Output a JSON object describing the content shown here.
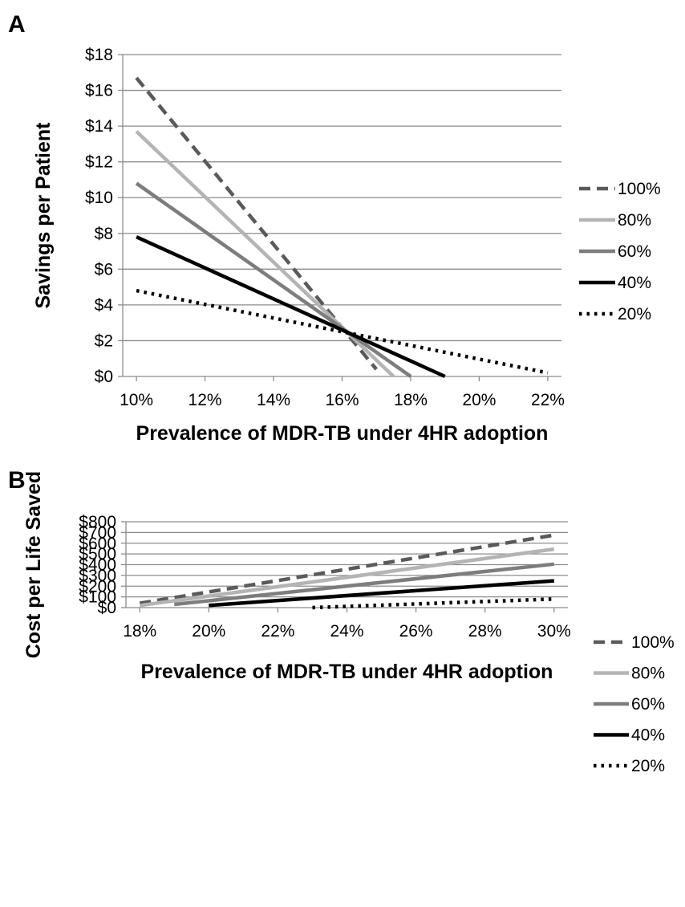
{
  "chart_data": [
    {
      "type": "line",
      "panel": "A",
      "xlabel": "Prevalence of MDR-TB under 4HR adoption",
      "ylabel": "Savings per Patient",
      "x_ticks": [
        "10%",
        "12%",
        "14%",
        "16%",
        "18%",
        "20%",
        "22%"
      ],
      "y_ticks": [
        "$0",
        "$2",
        "$4",
        "$6",
        "$8",
        "$10",
        "$12",
        "$14",
        "$16",
        "$18"
      ],
      "xlim": [
        9.6,
        22.4
      ],
      "ylim": [
        0,
        18
      ],
      "grid": "horizontal",
      "legend_position": "right",
      "series": [
        {
          "name": "100%",
          "style": "dashed",
          "color": "#5a5a5a",
          "points": [
            [
              10.0,
              16.7
            ],
            [
              17.0,
              0.4
            ]
          ]
        },
        {
          "name": "80%",
          "style": "solid",
          "color": "#b4b4b4",
          "points": [
            [
              10.0,
              13.7
            ],
            [
              17.5,
              0.0
            ]
          ]
        },
        {
          "name": "60%",
          "style": "solid",
          "color": "#7d7d7d",
          "points": [
            [
              10.0,
              10.8
            ],
            [
              18.0,
              0.0
            ]
          ]
        },
        {
          "name": "40%",
          "style": "solid",
          "color": "#000000",
          "points": [
            [
              10.0,
              7.8
            ],
            [
              19.0,
              0.0
            ]
          ]
        },
        {
          "name": "20%",
          "style": "dotted",
          "color": "#000000",
          "points": [
            [
              10.0,
              4.8
            ],
            [
              22.0,
              0.2
            ]
          ]
        }
      ]
    },
    {
      "type": "line",
      "panel": "B",
      "xlabel": "Prevalence of MDR-TB under 4HR adoption",
      "ylabel": "Cost per Life Saved",
      "x_ticks": [
        "18%",
        "20%",
        "22%",
        "24%",
        "26%",
        "28%",
        "30%"
      ],
      "y_ticks": [
        "$0",
        "$100",
        "$200",
        "$300",
        "$400",
        "$500",
        "$600",
        "$700",
        "$800"
      ],
      "xlim": [
        17.6,
        30.4
      ],
      "ylim": [
        0,
        800
      ],
      "grid": "horizontal",
      "legend_position": "right",
      "series": [
        {
          "name": "100%",
          "style": "dashed",
          "color": "#5a5a5a",
          "points": [
            [
              18.0,
              40
            ],
            [
              30.0,
              675
            ]
          ]
        },
        {
          "name": "80%",
          "style": "solid",
          "color": "#b4b4b4",
          "points": [
            [
              18.0,
              20
            ],
            [
              30.0,
              545
            ]
          ]
        },
        {
          "name": "60%",
          "style": "solid",
          "color": "#7d7d7d",
          "points": [
            [
              19.0,
              30
            ],
            [
              30.0,
              405
            ]
          ]
        },
        {
          "name": "40%",
          "style": "solid",
          "color": "#000000",
          "points": [
            [
              20.0,
              20
            ],
            [
              30.0,
              250
            ]
          ]
        },
        {
          "name": "20%",
          "style": "dotted",
          "color": "#000000",
          "points": [
            [
              23.0,
              0
            ],
            [
              30.0,
              80
            ]
          ]
        }
      ]
    }
  ]
}
